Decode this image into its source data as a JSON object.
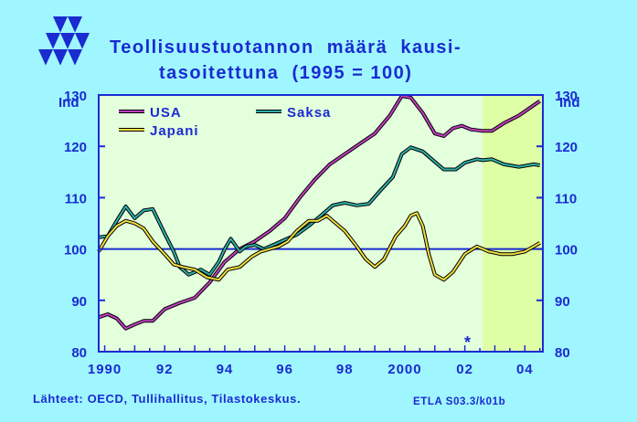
{
  "title_line1": "Teollisuustuotannon  määrä  kausi-",
  "title_line2": "tasoitettuna  (1995 = 100)",
  "source": "Lähteet:   OECD, Tullihallitus, Tilastokeskus.",
  "reference": "ETLA S03.3/k01b",
  "star_marker": "*",
  "colors": {
    "background": "#9ff6ff",
    "plot_bg": "#e4ffdc",
    "forecast_bg": "#dfffa6",
    "axis": "#1a2bd0",
    "usa": "#c040c0",
    "saksa": "#30b0a8",
    "japani": "#f0e040"
  },
  "chart_data": {
    "type": "line",
    "ylabel_left": "Ind",
    "ylabel_right": "Ind",
    "ylim": [
      80,
      130
    ],
    "xlim": [
      1989.8,
      2004.6
    ],
    "yticks": [
      80,
      90,
      100,
      110,
      120,
      130
    ],
    "xtick_labels": [
      {
        "x": 1990,
        "label": "1990"
      },
      {
        "x": 1992,
        "label": "92"
      },
      {
        "x": 1994,
        "label": "94"
      },
      {
        "x": 1996,
        "label": "96"
      },
      {
        "x": 1998,
        "label": "98"
      },
      {
        "x": 2000,
        "label": "2000"
      },
      {
        "x": 2002,
        "label": "02"
      },
      {
        "x": 2004,
        "label": "04"
      }
    ],
    "forecast_start": 2002.6,
    "reference_line": 100,
    "legend": [
      "USA",
      "Saksa",
      "Japani"
    ],
    "series": [
      {
        "name": "USA",
        "color": "#c040c0",
        "x": [
          1989.8,
          1990.1,
          1990.4,
          1990.7,
          1991.0,
          1991.3,
          1991.6,
          1992.0,
          1992.5,
          1993.0,
          1993.5,
          1994.0,
          1994.5,
          1995.0,
          1995.5,
          1996.0,
          1996.5,
          1997.0,
          1997.5,
          1998.0,
          1998.5,
          1999.0,
          1999.5,
          1999.9,
          2000.2,
          2000.6,
          2001.0,
          2001.3,
          2001.6,
          2001.9,
          2002.2,
          2002.6,
          2002.9,
          2003.3,
          2003.8,
          2004.3,
          2004.5
        ],
        "y": [
          86.7,
          87.3,
          86.5,
          84.5,
          85.3,
          86.0,
          86.0,
          88.3,
          89.5,
          90.5,
          93.5,
          97.5,
          100.0,
          101.5,
          103.5,
          106.0,
          110.0,
          113.5,
          116.5,
          118.5,
          120.5,
          122.5,
          126.0,
          129.8,
          129.5,
          126.5,
          122.5,
          122.0,
          123.5,
          124.0,
          123.3,
          123.0,
          123.0,
          124.5,
          126.0,
          128.0,
          128.8
        ]
      },
      {
        "name": "Saksa",
        "color": "#30b0a8",
        "x": [
          1989.8,
          1990.1,
          1990.4,
          1990.7,
          1991.0,
          1991.3,
          1991.6,
          1992.0,
          1992.3,
          1992.5,
          1992.8,
          1993.2,
          1993.5,
          1993.8,
          1994.0,
          1994.2,
          1994.5,
          1994.7,
          1995.0,
          1995.3,
          1995.7,
          1996.0,
          1996.4,
          1996.8,
          1997.2,
          1997.6,
          1998.0,
          1998.4,
          1998.8,
          1999.2,
          1999.6,
          1999.9,
          2000.2,
          2000.6,
          2000.9,
          2001.3,
          2001.7,
          2002.0,
          2002.4,
          2002.6,
          2002.9,
          2003.3,
          2003.8,
          2004.3,
          2004.5
        ],
        "y": [
          102.3,
          102.5,
          105.5,
          108.3,
          106.0,
          107.5,
          107.8,
          103.0,
          99.5,
          96.5,
          95.0,
          96.0,
          95.0,
          97.5,
          100.0,
          102.0,
          99.5,
          100.5,
          100.8,
          100.0,
          101.0,
          101.8,
          102.8,
          104.5,
          106.5,
          108.5,
          109.0,
          108.5,
          108.8,
          111.5,
          114.0,
          118.5,
          119.8,
          119.0,
          117.5,
          115.5,
          115.5,
          116.8,
          117.5,
          117.3,
          117.5,
          116.5,
          116.0,
          116.5,
          116.3
        ]
      },
      {
        "name": "Japani",
        "color": "#f0e040",
        "x": [
          1989.8,
          1990.1,
          1990.4,
          1990.7,
          1991.0,
          1991.3,
          1991.6,
          1992.0,
          1992.3,
          1992.6,
          1993.0,
          1993.4,
          1993.8,
          1994.1,
          1994.5,
          1994.9,
          1995.2,
          1995.5,
          1995.8,
          1996.1,
          1996.4,
          1996.8,
          1997.1,
          1997.4,
          1997.7,
          1998.0,
          1998.4,
          1998.7,
          1999.0,
          1999.3,
          1999.7,
          2000.0,
          2000.2,
          2000.4,
          2000.6,
          2000.8,
          2001.0,
          2001.3,
          2001.6,
          2002.0,
          2002.4,
          2002.8,
          2003.2,
          2003.6,
          2004.0,
          2004.3,
          2004.5
        ],
        "y": [
          99.5,
          102.5,
          104.5,
          105.5,
          105.0,
          104.0,
          101.5,
          99.0,
          97.0,
          96.5,
          96.0,
          94.5,
          94.0,
          96.0,
          96.5,
          98.5,
          99.5,
          100.0,
          100.5,
          101.5,
          103.5,
          105.5,
          105.5,
          106.5,
          105.0,
          103.5,
          100.5,
          98.0,
          96.5,
          98.0,
          102.5,
          104.5,
          106.5,
          107.0,
          104.5,
          99.0,
          95.0,
          94.0,
          95.5,
          99.0,
          100.5,
          99.5,
          99.0,
          99.0,
          99.5,
          100.5,
          101.2
        ]
      }
    ]
  }
}
